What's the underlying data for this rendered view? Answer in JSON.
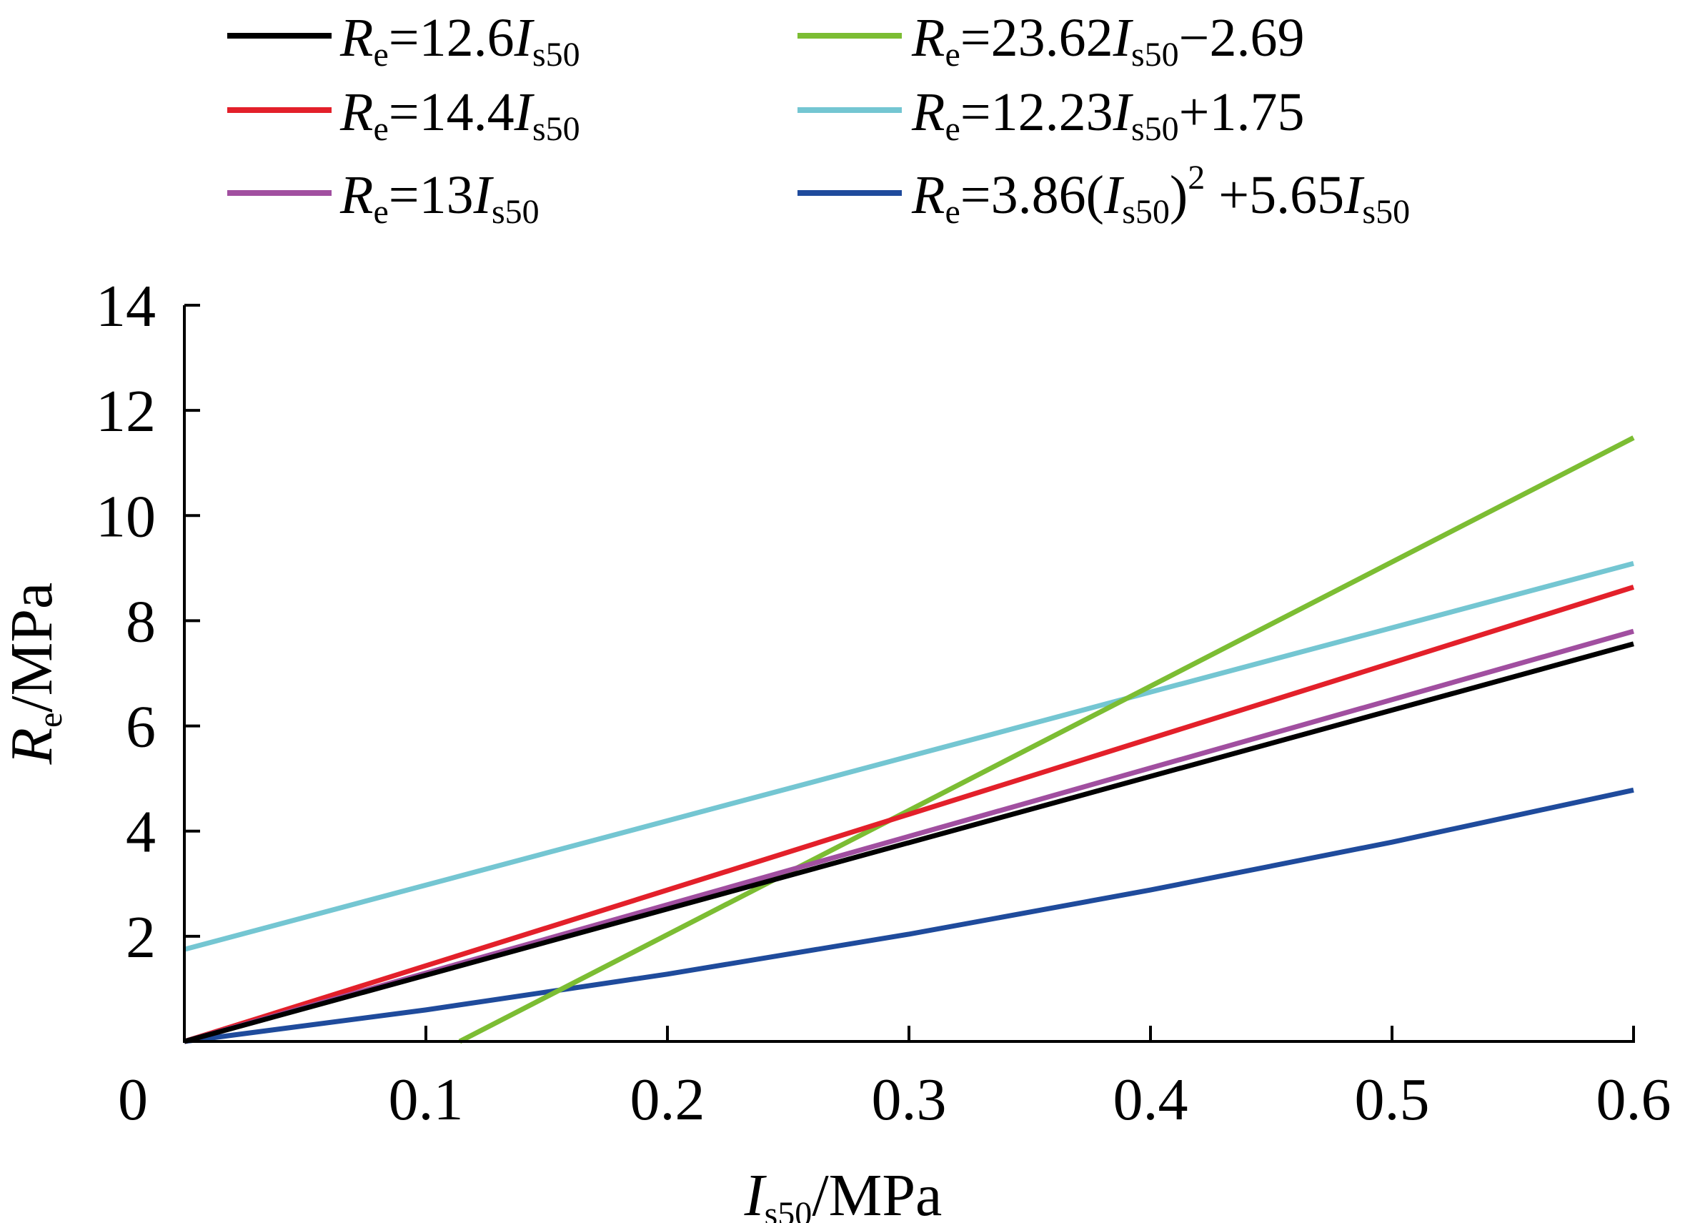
{
  "chart_data": {
    "type": "line",
    "xlabel": {
      "main": "I",
      "sub": "s50",
      "unit": "/MPa"
    },
    "ylabel": {
      "main": "R",
      "sub": "e",
      "unit": "/MPa"
    },
    "xlim": [
      0,
      0.6
    ],
    "ylim": [
      0,
      14
    ],
    "x_ticks": [
      0,
      0.1,
      0.2,
      0.3,
      0.4,
      0.5,
      0.6
    ],
    "x_tick_labels": [
      "0",
      "0.1",
      "0.2",
      "0.3",
      "0.4",
      "0.5",
      "0.6"
    ],
    "y_ticks": [
      2,
      4,
      6,
      8,
      10,
      12,
      14
    ],
    "y_tick_labels": [
      "2",
      "4",
      "6",
      "8",
      "10",
      "12",
      "14"
    ],
    "grid": false,
    "legend_position": "top",
    "series": [
      {
        "name": "Re=12.6Is50",
        "color": "#000000",
        "label_parts": [
          [
            "R",
            "it"
          ],
          [
            "e",
            "sub"
          ],
          [
            "=12.6",
            ""
          ],
          [
            "I",
            "it"
          ],
          [
            "s50",
            "sub"
          ]
        ],
        "x": [
          0,
          0.6
        ],
        "y": [
          0,
          7.56
        ]
      },
      {
        "name": "Re=14.4Is50",
        "color": "#e3202a",
        "label_parts": [
          [
            "R",
            "it"
          ],
          [
            "e",
            "sub"
          ],
          [
            "=14.4",
            ""
          ],
          [
            "I",
            "it"
          ],
          [
            "s50",
            "sub"
          ]
        ],
        "x": [
          0,
          0.6
        ],
        "y": [
          0,
          8.64
        ]
      },
      {
        "name": "Re=13Is50",
        "color": "#a14fa0",
        "label_parts": [
          [
            "R",
            "it"
          ],
          [
            "e",
            "sub"
          ],
          [
            "=13",
            ""
          ],
          [
            "I",
            "it"
          ],
          [
            "s50",
            "sub"
          ]
        ],
        "x": [
          0,
          0.6
        ],
        "y": [
          0,
          7.8
        ]
      },
      {
        "name": "Re=23.62Is50−2.69",
        "color": "#7cbd33",
        "label_parts": [
          [
            "R",
            "it"
          ],
          [
            "e",
            "sub"
          ],
          [
            "=23.62",
            ""
          ],
          [
            "I",
            "it"
          ],
          [
            "s50",
            "sub"
          ],
          [
            "−2.69",
            ""
          ]
        ],
        "x": [
          0.114,
          0.6
        ],
        "y": [
          0,
          11.48
        ]
      },
      {
        "name": "Re=12.23Is50+1.75",
        "color": "#74c6d2",
        "label_parts": [
          [
            "R",
            "it"
          ],
          [
            "e",
            "sub"
          ],
          [
            "=12.23",
            ""
          ],
          [
            "I",
            "it"
          ],
          [
            "s50",
            "sub"
          ],
          [
            "+1.75",
            ""
          ]
        ],
        "x": [
          0,
          0.6
        ],
        "y": [
          1.75,
          9.09
        ]
      },
      {
        "name": "Re=3.86(Is50)2 +5.65Is50",
        "color": "#1f4b9c",
        "label_parts": [
          [
            "R",
            "it"
          ],
          [
            "e",
            "sub"
          ],
          [
            "=3.86(",
            ""
          ],
          [
            "I",
            "it"
          ],
          [
            "s50",
            "sub"
          ],
          [
            ")",
            ""
          ],
          [
            "2",
            "sup"
          ],
          [
            " +5.65",
            ""
          ],
          [
            "I",
            "it"
          ],
          [
            "s50",
            "sub"
          ]
        ],
        "x": [
          0,
          0.1,
          0.2,
          0.3,
          0.4,
          0.5,
          0.6
        ],
        "y": [
          0,
          0.6,
          1.28,
          2.04,
          2.88,
          3.79,
          4.78
        ]
      }
    ]
  }
}
